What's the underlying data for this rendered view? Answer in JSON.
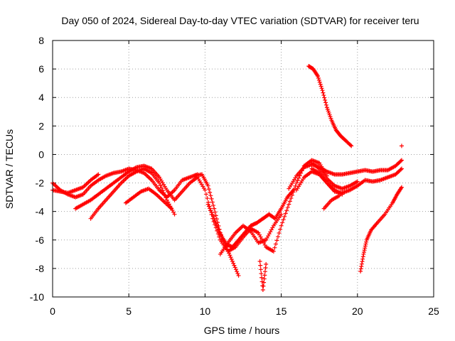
{
  "chart_data": {
    "type": "scatter",
    "title": "Day 050 of 2024, Sidereal Day-to-day VTEC variation (SDTVAR) for receiver teru",
    "xlabel": "GPS time / hours",
    "ylabel": "SDTVAR / TECUs",
    "xlim": [
      0,
      25
    ],
    "ylim": [
      -10,
      8
    ],
    "xticks": [
      "0",
      "5",
      "10",
      "15",
      "20",
      "25"
    ],
    "yticks": [
      "-10",
      "-8",
      "-6",
      "-4",
      "-2",
      "0",
      "2",
      "4",
      "6",
      "8"
    ],
    "grid": true,
    "marker": "+",
    "color": "#ff0000",
    "series": [
      {
        "x": [
          0.0,
          0.5,
          1.0,
          1.5,
          2.0,
          2.5,
          3.0,
          3.5,
          4.0,
          4.5,
          5.0,
          5.5,
          6.0,
          6.5,
          7.0,
          7.5,
          8.0,
          8.5,
          9.0,
          9.5
        ],
        "y": [
          -2.0,
          -2.5,
          -2.8,
          -3.0,
          -2.8,
          -2.2,
          -1.8,
          -1.5,
          -1.3,
          -1.2,
          -1.0,
          -1.1,
          -1.3,
          -1.8,
          -2.5,
          -3.0,
          -2.5,
          -1.8,
          -1.6,
          -1.4
        ]
      },
      {
        "x": [
          0.0,
          0.5,
          1.0,
          1.5,
          2.0,
          2.5,
          3.0
        ],
        "y": [
          -2.5,
          -2.6,
          -2.7,
          -2.5,
          -2.3,
          -1.8,
          -1.4
        ]
      },
      {
        "x": [
          1.5,
          2.0,
          2.5,
          3.0,
          3.5,
          4.0,
          4.5,
          5.0,
          5.5,
          6.0,
          6.5,
          7.0,
          7.5,
          8.0,
          8.5,
          9.0,
          9.5
        ],
        "y": [
          -3.8,
          -3.5,
          -3.2,
          -2.8,
          -2.4,
          -2.0,
          -1.6,
          -1.2,
          -0.9,
          -0.8,
          -1.0,
          -1.6,
          -2.5,
          -3.2,
          -2.6,
          -2.0,
          -1.6
        ]
      },
      {
        "x": [
          2.5,
          3.0,
          3.5,
          4.0,
          4.5,
          5.0,
          5.5,
          6.0,
          6.5,
          7.0,
          7.5,
          8.0
        ],
        "y": [
          -4.5,
          -3.8,
          -3.2,
          -2.6,
          -2.0,
          -1.5,
          -1.2,
          -1.0,
          -1.3,
          -2.0,
          -3.2,
          -4.2
        ]
      },
      {
        "x": [
          4.8,
          5.3,
          5.8,
          6.3,
          6.8,
          7.3,
          7.8
        ],
        "y": [
          -3.4,
          -3.0,
          -2.6,
          -2.4,
          -2.8,
          -3.3,
          -3.8
        ]
      },
      {
        "x": [
          9.3,
          9.8,
          10.2,
          10.6,
          11.0,
          11.4,
          11.8,
          12.2
        ],
        "y": [
          -1.5,
          -1.4,
          -2.2,
          -3.8,
          -5.5,
          -6.5,
          -7.5,
          -8.5
        ]
      },
      {
        "x": [
          9.5,
          10.0,
          10.5,
          11.0,
          11.5,
          12.0,
          12.5,
          13.0,
          13.5,
          14.0,
          14.5,
          15.0,
          15.5,
          16.0,
          16.5,
          17.0,
          17.5,
          18.0
        ],
        "y": [
          -1.6,
          -2.5,
          -4.5,
          -6.0,
          -6.8,
          -6.5,
          -5.8,
          -5.2,
          -5.5,
          -6.5,
          -6.8,
          -5.0,
          -3.5,
          -2.0,
          -0.8,
          -0.4,
          -0.6,
          -1.5
        ]
      },
      {
        "x": [
          10.2,
          10.6,
          11.0,
          11.4,
          11.8,
          12.2,
          12.6,
          13.0,
          13.4,
          13.8,
          14.2,
          14.6,
          15.0,
          15.4,
          15.8
        ],
        "y": [
          -3.5,
          -4.5,
          -5.6,
          -6.3,
          -6.5,
          -6.0,
          -5.5,
          -5.0,
          -4.8,
          -4.5,
          -4.2,
          -4.5,
          -3.8,
          -3.0,
          -2.5
        ]
      },
      {
        "x": [
          11.0,
          11.5,
          12.0,
          12.5,
          13.0,
          13.5,
          14.0,
          14.5,
          15.0
        ],
        "y": [
          -7.0,
          -6.2,
          -5.5,
          -5.0,
          -5.4,
          -6.2,
          -6.0,
          -5.0,
          -4.2
        ]
      },
      {
        "x": [
          13.6,
          13.8,
          14.0
        ],
        "y": [
          -7.5,
          -9.5,
          -7.7
        ]
      },
      {
        "x": [
          15.5,
          16.0,
          16.5,
          17.0,
          17.5,
          18.0,
          18.5,
          19.0,
          19.5,
          20.0,
          20.5,
          21.0,
          21.5,
          22.0,
          22.5,
          22.9
        ],
        "y": [
          -2.4,
          -1.5,
          -0.9,
          -0.7,
          -0.9,
          -1.2,
          -1.4,
          -1.4,
          -1.3,
          -1.2,
          -1.1,
          -1.2,
          -1.1,
          -1.1,
          -0.8,
          -0.4
        ]
      },
      {
        "x": [
          16.0,
          16.5,
          17.0,
          17.5,
          18.0,
          18.5,
          19.0
        ],
        "y": [
          -2.5,
          -1.6,
          -1.2,
          -1.4,
          -2.0,
          -2.5,
          -2.8
        ]
      },
      {
        "x": [
          17.0,
          17.5,
          18.0,
          18.5,
          19.0,
          19.5,
          20.0,
          20.5,
          21.0,
          21.5,
          22.0,
          22.5,
          22.9
        ],
        "y": [
          -1.0,
          -1.3,
          -2.0,
          -2.6,
          -2.7,
          -2.5,
          -2.2,
          -1.8,
          -1.9,
          -1.8,
          -1.6,
          -1.4,
          -1.0
        ]
      },
      {
        "x": [
          17.0,
          17.5,
          18.0,
          18.5,
          19.0,
          19.5,
          20.0
        ],
        "y": [
          -0.6,
          -1.0,
          -1.7,
          -2.2,
          -2.4,
          -2.2,
          -1.9
        ]
      },
      {
        "x": [
          17.8,
          18.3,
          18.8
        ],
        "y": [
          -3.8,
          -3.2,
          -2.9
        ]
      },
      {
        "x": [
          16.8,
          17.1,
          17.4,
          17.7,
          18.0,
          18.3,
          18.6,
          18.9,
          19.2,
          19.6
        ],
        "y": [
          6.2,
          6.0,
          5.5,
          4.5,
          3.3,
          2.4,
          1.7,
          1.3,
          1.0,
          0.6
        ]
      },
      {
        "x": [
          20.2,
          20.4,
          20.6,
          20.9,
          21.3,
          21.8,
          22.3,
          22.6,
          22.9
        ],
        "y": [
          -8.2,
          -7.0,
          -6.0,
          -5.3,
          -4.8,
          -4.2,
          -3.4,
          -2.8,
          -2.3
        ]
      },
      {
        "x": [
          22.9
        ],
        "y": [
          0.6
        ]
      }
    ]
  }
}
